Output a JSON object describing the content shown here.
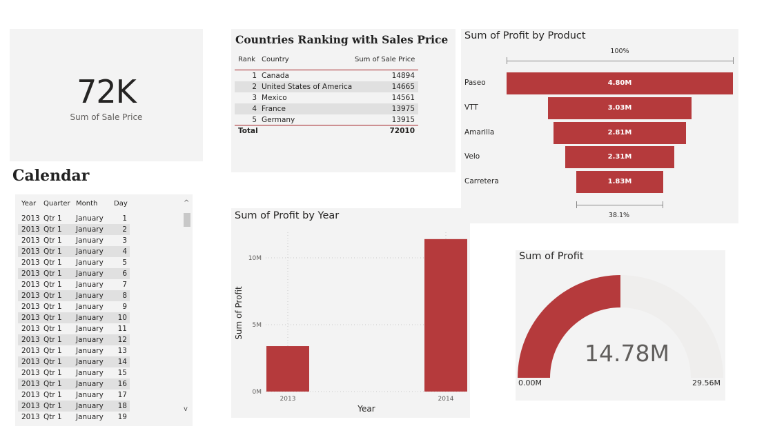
{
  "kpi": {
    "value": "72K",
    "label": "Sum of Sale Price"
  },
  "calendar": {
    "title": "Calendar",
    "columns": [
      "Year",
      "Quarter",
      "Month",
      "Day"
    ],
    "rows": [
      [
        "2013",
        "Qtr 1",
        "January",
        "1"
      ],
      [
        "2013",
        "Qtr 1",
        "January",
        "2"
      ],
      [
        "2013",
        "Qtr 1",
        "January",
        "3"
      ],
      [
        "2013",
        "Qtr 1",
        "January",
        "4"
      ],
      [
        "2013",
        "Qtr 1",
        "January",
        "5"
      ],
      [
        "2013",
        "Qtr 1",
        "January",
        "6"
      ],
      [
        "2013",
        "Qtr 1",
        "January",
        "7"
      ],
      [
        "2013",
        "Qtr 1",
        "January",
        "8"
      ],
      [
        "2013",
        "Qtr 1",
        "January",
        "9"
      ],
      [
        "2013",
        "Qtr 1",
        "January",
        "10"
      ],
      [
        "2013",
        "Qtr 1",
        "January",
        "11"
      ],
      [
        "2013",
        "Qtr 1",
        "January",
        "12"
      ],
      [
        "2013",
        "Qtr 1",
        "January",
        "13"
      ],
      [
        "2013",
        "Qtr 1",
        "January",
        "14"
      ],
      [
        "2013",
        "Qtr 1",
        "January",
        "15"
      ],
      [
        "2013",
        "Qtr 1",
        "January",
        "16"
      ],
      [
        "2013",
        "Qtr 1",
        "January",
        "17"
      ],
      [
        "2013",
        "Qtr 1",
        "January",
        "18"
      ],
      [
        "2013",
        "Qtr 1",
        "January",
        "19"
      ]
    ],
    "scroll_up": "^",
    "scroll_down": "v"
  },
  "countries": {
    "title": "Countries Ranking with Sales Price",
    "columns": [
      "Rank",
      "Country",
      "Sum of Sale Price"
    ],
    "rows": [
      [
        "1",
        "Canada",
        "14894"
      ],
      [
        "2",
        "United States of America",
        "14665"
      ],
      [
        "3",
        "Mexico",
        "14561"
      ],
      [
        "4",
        "France",
        "13975"
      ],
      [
        "5",
        "Germany",
        "13915"
      ]
    ],
    "total_label": "Total",
    "total_value": "72010"
  },
  "funnel": {
    "title": "Sum of Profit by Product",
    "top_pct": "100%",
    "bottom_pct": "38.1%",
    "accent": "#b53a3c"
  },
  "year_chart": {
    "title": "Sum of Profit by Year",
    "bar_color": "#b53a3c"
  },
  "gauge": {
    "title": "Sum of Profit",
    "value_label": "14.78M",
    "min_label": "0.00M",
    "max_label": "29.56M",
    "value": 14.78,
    "min": 0,
    "max": 29.56,
    "fill_color": "#b53a3c",
    "track_color": "#efeeed"
  },
  "chart_data": [
    {
      "type": "bar",
      "orientation": "horizontal-funnel",
      "title": "Sum of Profit by Product",
      "categories": [
        "Paseo",
        "VTT",
        "Amarilla",
        "Velo",
        "Carretera"
      ],
      "values": [
        4.8,
        3.03,
        2.81,
        2.31,
        1.83
      ],
      "value_labels": [
        "4.80M",
        "3.03M",
        "2.81M",
        "2.31M",
        "1.83M"
      ]
    },
    {
      "type": "bar",
      "title": "Sum of Profit by Year",
      "xlabel": "Year",
      "ylabel": "Sum of Profit",
      "categories": [
        "2013",
        "2014"
      ],
      "values": [
        3.4,
        11.4
      ],
      "ylim": [
        0,
        11.5
      ],
      "yticks": [
        0,
        5,
        10
      ],
      "ytick_labels": [
        "0M",
        "5M",
        "10M"
      ],
      "grid": true
    }
  ]
}
